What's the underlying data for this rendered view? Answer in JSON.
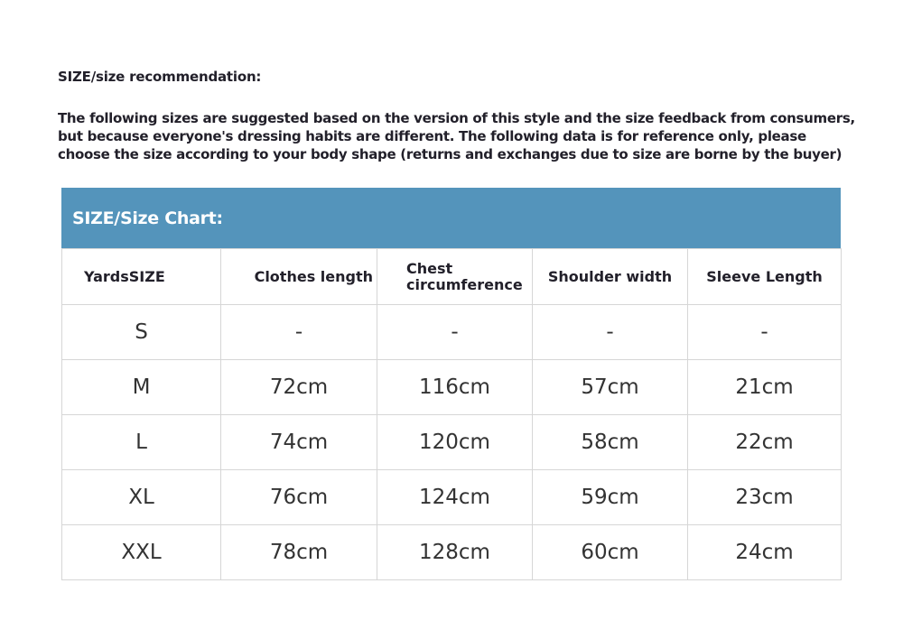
{
  "heading": "SIZE/size recommendation:",
  "intro": [
    "The following sizes are suggested based on the version of this style and the size feedback from consumers,",
    "but because everyone's dressing habits are different. The following data is for reference only, please",
    "choose the size according to your body shape (returns and exchanges due to size are borne by the buyer)"
  ],
  "table": {
    "title": "SIZE/Size Chart:",
    "header_color": "#5494bb",
    "columns": [
      "YardsSIZE",
      "Clothes length",
      "Chest circumference",
      "Shoulder width",
      "Sleeve Length"
    ],
    "rows": [
      [
        "S",
        "-",
        "-",
        "-",
        "-"
      ],
      [
        "M",
        "72cm",
        "116cm",
        "57cm",
        "21cm"
      ],
      [
        "L",
        "74cm",
        "120cm",
        "58cm",
        "22cm"
      ],
      [
        "XL",
        "76cm",
        "124cm",
        "59cm",
        "23cm"
      ],
      [
        "XXL",
        "78cm",
        "128cm",
        "60cm",
        "24cm"
      ]
    ]
  }
}
